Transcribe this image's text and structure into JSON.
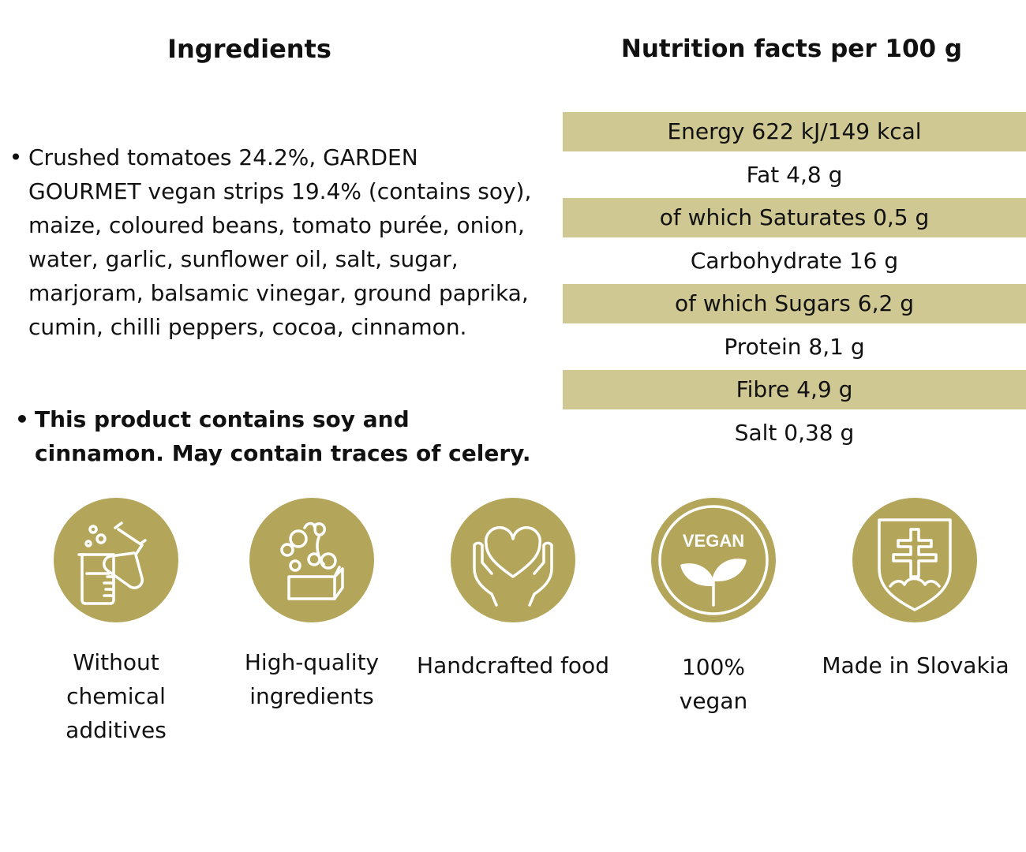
{
  "ingredients": {
    "heading": "Ingredients",
    "items": [
      "Crushed tomatoes 24.2%, GARDEN GOURMET vegan strips 19.4% (contains soy), maize, coloured beans, tomato purée, onion, water, garlic, sunflower oil, salt, sugar, marjoram, balsamic vinegar, ground paprika, cumin, chilli peppers, cocoa, cinnamon."
    ],
    "allergen_note": "This product contains soy and cinnamon. May contain traces of celery."
  },
  "nutrition": {
    "heading": "Nutrition facts per 100 g",
    "rows": [
      "Energy 622 kJ/149 kcal",
      "Fat 4,8 g",
      "of which Saturates 0,5 g",
      "Carbohydrate 16 g",
      "of which Sugars 6,2 g",
      "Protein 8,1 g",
      "Fibre 4,9 g",
      "Salt 0,38 g"
    ]
  },
  "badges": [
    {
      "icon": "chemistry-lab-icon",
      "label": "Without chemical additives"
    },
    {
      "icon": "vegetables-box-icon",
      "label": "High-quality ingredients"
    },
    {
      "icon": "heart-in-hands-icon",
      "label": "Handcrafted food"
    },
    {
      "icon": "vegan-leaf-icon",
      "label": "100% vegan",
      "icon_text": "VEGAN"
    },
    {
      "icon": "slovak-coat-of-arms-icon",
      "label": "Made in Slovakia"
    }
  ],
  "colors": {
    "accent": "#b3a65a",
    "row_shade": "#cfc893",
    "text": "#111111",
    "background": "#ffffff"
  }
}
